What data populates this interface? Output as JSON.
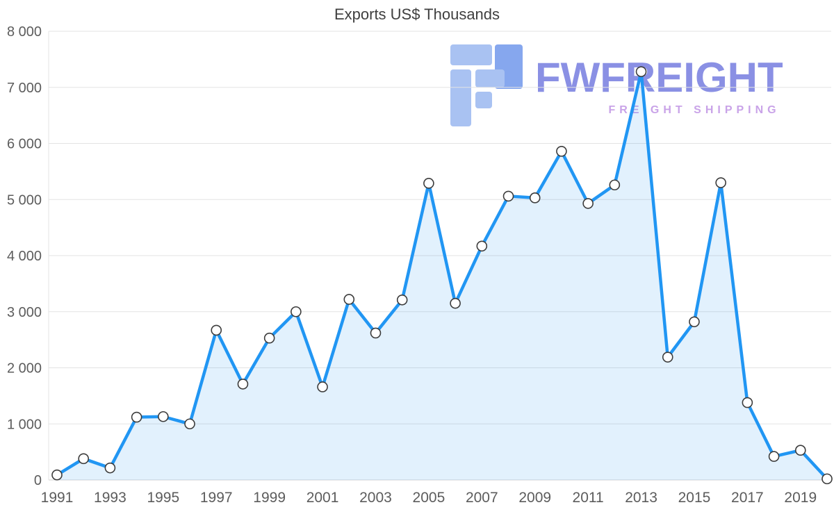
{
  "title": "Exports US$ Thousands",
  "watermark": {
    "brand": "FWFREIGHT",
    "tagline": "FREIGHT SHIPPING",
    "brand_color": "#8a90e4",
    "tagline_color": "#c9a3e8",
    "icon_color_light": "#a9c2f2",
    "icon_color_dark": "#86a7ee"
  },
  "chart_data": {
    "type": "area",
    "title": "Exports US$ Thousands",
    "xlabel": "",
    "ylabel": "",
    "x": [
      1991,
      1992,
      1993,
      1994,
      1995,
      1996,
      1997,
      1998,
      1999,
      2000,
      2001,
      2002,
      2003,
      2004,
      2005,
      2006,
      2007,
      2008,
      2009,
      2010,
      2011,
      2012,
      2013,
      2014,
      2015,
      2016,
      2017,
      2018,
      2019,
      2020
    ],
    "values": [
      90,
      380,
      215,
      1120,
      1130,
      1000,
      2670,
      1710,
      2530,
      3000,
      1660,
      3220,
      2620,
      3210,
      5290,
      3150,
      4170,
      5060,
      5030,
      5860,
      4930,
      5260,
      7280,
      2190,
      2820,
      5300,
      1380,
      420,
      530,
      20
    ],
    "ylim": [
      0,
      8000
    ],
    "ytick_labels": [
      "0",
      "1 000",
      "2 000",
      "3 000",
      "4 000",
      "5 000",
      "6 000",
      "7 000",
      "8 000"
    ],
    "xtick_labels": [
      "1991",
      "1993",
      "1995",
      "1997",
      "1999",
      "2001",
      "2003",
      "2005",
      "2007",
      "2009",
      "2011",
      "2013",
      "2015",
      "2017",
      "2019"
    ],
    "legend": "none",
    "grid": "horizontal",
    "line_color": "#2196f3",
    "area_color": "rgba(33,150,243,0.13)",
    "marker_fill": "#ffffff",
    "marker_stroke": "#3c3c3c",
    "grid_color": "#e3e3e3",
    "baseline_color": "#d4d4d4",
    "axis_label_color": "#5c5c5c"
  }
}
